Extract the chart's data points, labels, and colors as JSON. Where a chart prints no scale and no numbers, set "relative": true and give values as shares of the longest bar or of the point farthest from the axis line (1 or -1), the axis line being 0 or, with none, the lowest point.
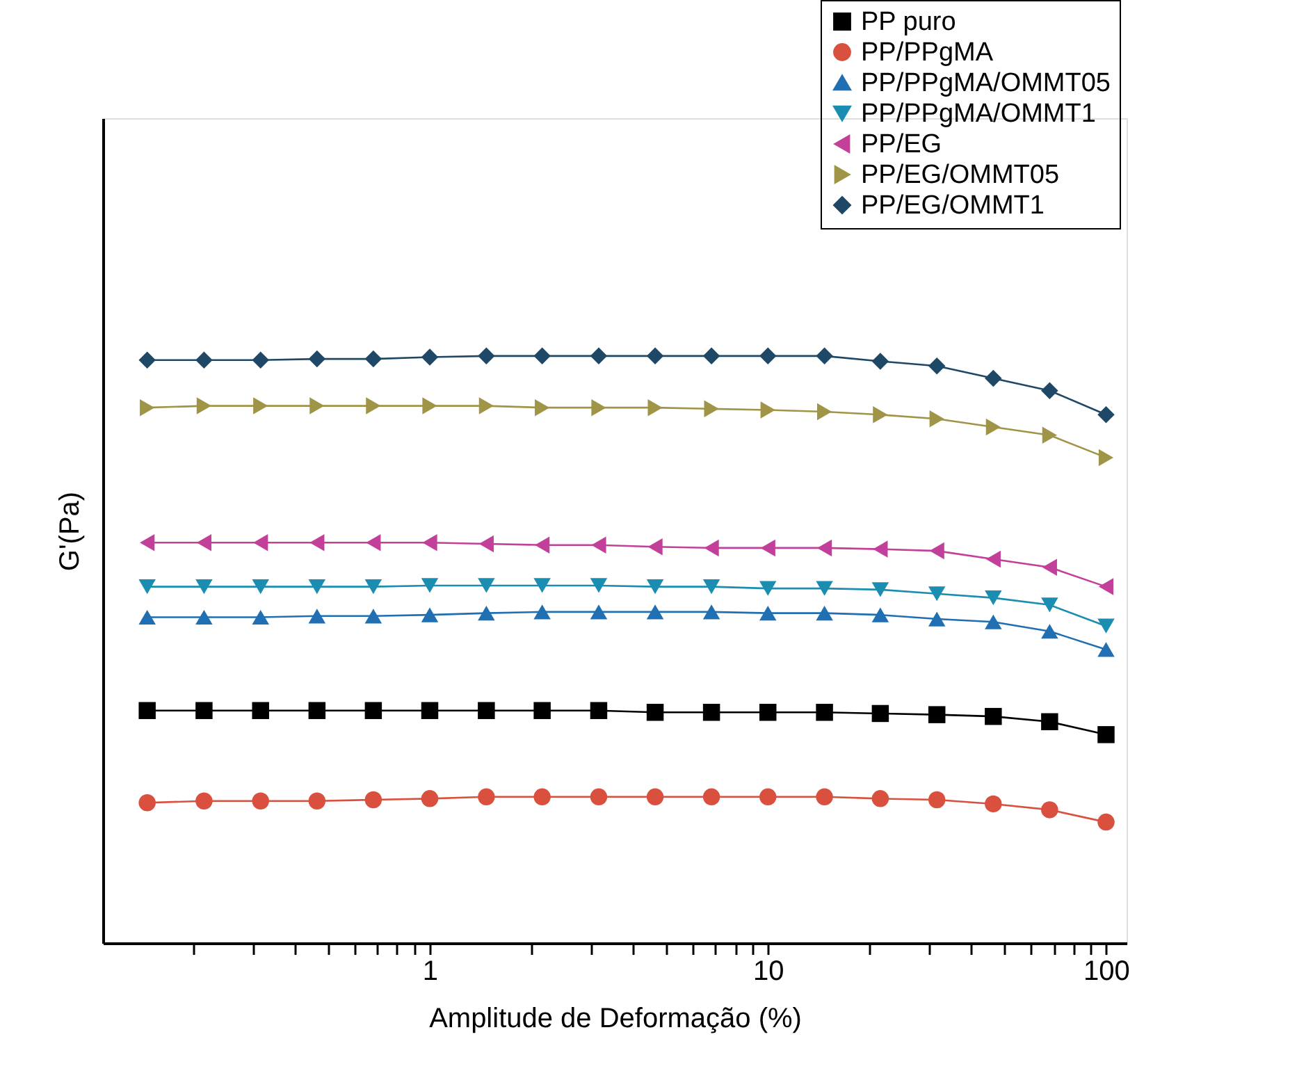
{
  "chart_data": {
    "type": "line",
    "xlabel": "Amplitude de Deformação (%)",
    "ylabel": "G'(Pa)",
    "relative": true,
    "log": "x",
    "x": [
      0.146,
      0.215,
      0.316,
      0.464,
      0.681,
      1,
      1.47,
      2.15,
      3.16,
      4.64,
      6.81,
      10,
      14.7,
      21.5,
      31.6,
      46.4,
      68.1,
      100
    ],
    "xlim": [
      0.108,
      115
    ],
    "xticks": [
      {
        "value": 0.2,
        "label": null
      },
      {
        "value": 0.3,
        "label": null
      },
      {
        "value": 0.4,
        "label": null
      },
      {
        "value": 0.5,
        "label": null
      },
      {
        "value": 0.6,
        "label": null
      },
      {
        "value": 0.7,
        "label": null
      },
      {
        "value": 0.8,
        "label": null
      },
      {
        "value": 0.9,
        "label": null
      },
      1,
      {
        "value": 2,
        "label": null
      },
      {
        "value": 3,
        "label": null
      },
      {
        "value": 4,
        "label": null
      },
      {
        "value": 5,
        "label": null
      },
      {
        "value": 6,
        "label": null
      },
      {
        "value": 7,
        "label": null
      },
      {
        "value": 8,
        "label": null
      },
      {
        "value": 9,
        "label": null
      },
      10,
      {
        "value": 20,
        "label": null
      },
      {
        "value": 30,
        "label": null
      },
      {
        "value": 40,
        "label": null
      },
      {
        "value": 50,
        "label": null
      },
      {
        "value": 60,
        "label": null
      },
      {
        "value": 70,
        "label": null
      },
      {
        "value": 80,
        "label": null
      },
      {
        "value": 90,
        "label": null
      },
      100
    ],
    "grid": false,
    "legend": "top right",
    "line_style": "solid",
    "series": [
      {
        "name": "PP puro",
        "color": "#000000",
        "marker": "square",
        "values": [
          0.396,
          0.396,
          0.396,
          0.396,
          0.396,
          0.396,
          0.396,
          0.396,
          0.396,
          0.393,
          0.393,
          0.393,
          0.393,
          0.391,
          0.389,
          0.386,
          0.377,
          0.355
        ]
      },
      {
        "name": "PP/PPgMA",
        "color": "#d9503f",
        "marker": "circle",
        "values": [
          0.239,
          0.242,
          0.242,
          0.242,
          0.244,
          0.246,
          0.249,
          0.249,
          0.249,
          0.249,
          0.249,
          0.249,
          0.249,
          0.246,
          0.244,
          0.237,
          0.227,
          0.206
        ]
      },
      {
        "name": "PP/PPgMA/OMMT05",
        "color": "#1f6fb2",
        "marker": "triangle-up",
        "values": [
          0.555,
          0.555,
          0.555,
          0.557,
          0.557,
          0.559,
          0.562,
          0.564,
          0.564,
          0.564,
          0.564,
          0.562,
          0.562,
          0.559,
          0.552,
          0.547,
          0.531,
          0.5
        ]
      },
      {
        "name": "PP/PPgMA/OMMT1",
        "color": "#1a8db0",
        "marker": "triangle-down",
        "values": [
          0.607,
          0.607,
          0.607,
          0.607,
          0.607,
          0.609,
          0.609,
          0.609,
          0.609,
          0.607,
          0.607,
          0.604,
          0.604,
          0.602,
          0.595,
          0.588,
          0.576,
          0.54
        ]
      },
      {
        "name": "PP/EG",
        "color": "#c2409a",
        "marker": "triangle-left",
        "values": [
          0.682,
          0.682,
          0.682,
          0.682,
          0.682,
          0.682,
          0.68,
          0.678,
          0.678,
          0.675,
          0.673,
          0.673,
          0.673,
          0.671,
          0.668,
          0.654,
          0.64,
          0.607
        ]
      },
      {
        "name": "PP/EG/OMMT05",
        "color": "#a09447",
        "marker": "triangle-right",
        "values": [
          0.912,
          0.915,
          0.915,
          0.915,
          0.915,
          0.915,
          0.915,
          0.912,
          0.912,
          0.912,
          0.91,
          0.908,
          0.905,
          0.9,
          0.893,
          0.879,
          0.865,
          0.827
        ]
      },
      {
        "name": "PP/EG/OMMT1",
        "color": "#1e4866",
        "marker": "diamond",
        "values": [
          0.993,
          0.993,
          0.993,
          0.995,
          0.995,
          0.998,
          1,
          1,
          1,
          1,
          1,
          1,
          1,
          0.991,
          0.983,
          0.962,
          0.941,
          0.9
        ]
      }
    ]
  }
}
